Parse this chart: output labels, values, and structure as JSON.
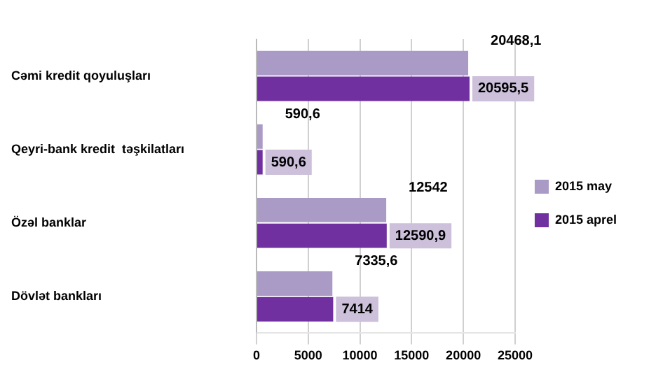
{
  "chart_data": {
    "type": "bar",
    "orientation": "horizontal",
    "categories": [
      "Cəmi kredit qoyuluşları",
      "Qeyri-bank kredit  təşkilatları",
      "Özəl banklar",
      "Dövlət bankları"
    ],
    "series": [
      {
        "name": "2015 may",
        "color": "#a99bc6",
        "values": [
          20468.1,
          590.6,
          12542,
          7335.6
        ],
        "value_labels": [
          "20468,1",
          "590,6",
          "12542",
          "7335,6"
        ]
      },
      {
        "name": "2015 aprel",
        "color": "#7030a0",
        "values": [
          20595.5,
          590.6,
          12590.9,
          7414
        ],
        "value_labels": [
          "20595,5",
          "590,6",
          "12590,9",
          "7414"
        ]
      }
    ],
    "xlim": [
      0,
      25000
    ],
    "xticks": [
      0,
      5000,
      10000,
      15000,
      20000,
      25000
    ],
    "grid": "x",
    "legend": "right"
  }
}
